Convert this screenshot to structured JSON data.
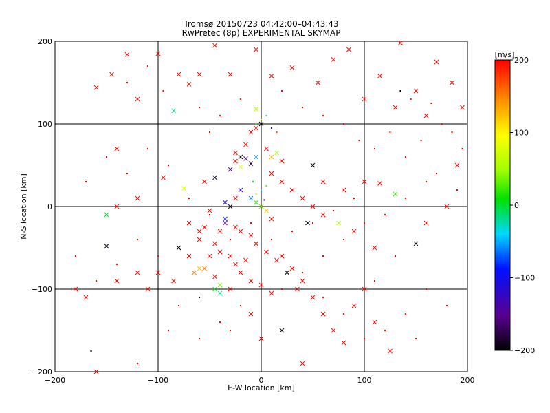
{
  "chart_data": {
    "type": "scatter",
    "title": "Tromsø 20150723 04:42:00–04:43:43",
    "subtitle": "RwPretec (8p) EXPERIMENTAL SKYMAP",
    "xlabel": "E-W location [km]",
    "ylabel": "N-S location [km]",
    "xlim": [
      -200,
      200
    ],
    "ylim": [
      -200,
      200
    ],
    "xticks": [
      "-200",
      "-100",
      "0",
      "100",
      "200"
    ],
    "yticks": [
      "-200",
      "-100",
      "0",
      "100",
      "200"
    ],
    "grid_lines_at": [
      -100,
      0,
      100
    ],
    "colorbar": {
      "label": "[m/s]",
      "min": -200,
      "max": 200,
      "ticks": [
        "200",
        "100",
        "0",
        "-100",
        "-200"
      ],
      "colormap": "rainbow (black-purple-blue-cyan-green-yellow-orange-red)"
    },
    "markers": {
      "cross": "x",
      "dot": "small point"
    },
    "series_note": "Meteor detections; color encodes radial velocity",
    "points": [
      [
        -160,
        144,
        200,
        "x"
      ],
      [
        -130,
        184,
        200,
        "x"
      ],
      [
        -145,
        160,
        200,
        "x"
      ],
      [
        -120,
        130,
        200,
        "x"
      ],
      [
        -100,
        185,
        200,
        "x"
      ],
      [
        -80,
        160,
        200,
        "x"
      ],
      [
        -70,
        148,
        200,
        "x"
      ],
      [
        -60,
        160,
        200,
        "x"
      ],
      [
        -45,
        195,
        200,
        "x"
      ],
      [
        -30,
        160,
        200,
        "x"
      ],
      [
        -5,
        190,
        200,
        "x"
      ],
      [
        10,
        158,
        200,
        "x"
      ],
      [
        30,
        168,
        200,
        "x"
      ],
      [
        55,
        150,
        200,
        "x"
      ],
      [
        70,
        178,
        200,
        "x"
      ],
      [
        85,
        190,
        200,
        "x"
      ],
      [
        100,
        130,
        200,
        "x"
      ],
      [
        115,
        158,
        200,
        "x"
      ],
      [
        135,
        198,
        200,
        "x"
      ],
      [
        150,
        140,
        200,
        "x"
      ],
      [
        170,
        175,
        200,
        "x"
      ],
      [
        195,
        120,
        200,
        "x"
      ],
      [
        185,
        150,
        200,
        "x"
      ],
      [
        160,
        110,
        200,
        "x"
      ],
      [
        130,
        120,
        200,
        "x"
      ],
      [
        -85,
        116,
        -20,
        "x"
      ],
      [
        -5,
        118,
        60,
        "x"
      ],
      [
        -140,
        70,
        200,
        "x"
      ],
      [
        -95,
        35,
        200,
        "x"
      ],
      [
        -75,
        22,
        80,
        "x"
      ],
      [
        -55,
        30,
        200,
        "x"
      ],
      [
        -45,
        35,
        -190,
        "x"
      ],
      [
        -30,
        45,
        -150,
        "x"
      ],
      [
        -25,
        55,
        200,
        "x"
      ],
      [
        -20,
        60,
        -200,
        "x"
      ],
      [
        -15,
        75,
        200,
        "x"
      ],
      [
        -10,
        90,
        200,
        "x"
      ],
      [
        -5,
        95,
        200,
        "x"
      ],
      [
        0,
        100,
        -200,
        "x"
      ],
      [
        5,
        70,
        200,
        "x"
      ],
      [
        10,
        60,
        130,
        "x"
      ],
      [
        15,
        65,
        60,
        "x"
      ],
      [
        20,
        55,
        200,
        "x"
      ],
      [
        -20,
        20,
        -120,
        "x"
      ],
      [
        -10,
        10,
        -60,
        "x"
      ],
      [
        -5,
        5,
        20,
        "x"
      ],
      [
        0,
        0,
        40,
        "x"
      ],
      [
        5,
        -5,
        120,
        "x"
      ],
      [
        10,
        -15,
        200,
        "x"
      ],
      [
        -35,
        -15,
        -100,
        "x"
      ],
      [
        -40,
        -30,
        200,
        "x"
      ],
      [
        -45,
        -45,
        200,
        "x"
      ],
      [
        -50,
        -60,
        200,
        "x"
      ],
      [
        -55,
        -75,
        150,
        "x"
      ],
      [
        -45,
        -85,
        200,
        "x"
      ],
      [
        -40,
        -95,
        40,
        "x"
      ],
      [
        -30,
        -100,
        200,
        "x"
      ],
      [
        -20,
        -80,
        200,
        "x"
      ],
      [
        -25,
        -70,
        200,
        "x"
      ],
      [
        -30,
        -60,
        200,
        "x"
      ],
      [
        -15,
        -65,
        200,
        "x"
      ],
      [
        -10,
        -90,
        200,
        "x"
      ],
      [
        0,
        -95,
        200,
        "x"
      ],
      [
        10,
        -105,
        200,
        "x"
      ],
      [
        20,
        -60,
        200,
        "x"
      ],
      [
        30,
        -75,
        200,
        "x"
      ],
      [
        40,
        -90,
        200,
        "x"
      ],
      [
        50,
        -110,
        200,
        "x"
      ],
      [
        60,
        -130,
        200,
        "x"
      ],
      [
        70,
        -150,
        200,
        "x"
      ],
      [
        80,
        -165,
        200,
        "x"
      ],
      [
        90,
        -120,
        200,
        "x"
      ],
      [
        100,
        -100,
        200,
        "x"
      ],
      [
        110,
        -140,
        200,
        "x"
      ],
      [
        125,
        -175,
        200,
        "x"
      ],
      [
        -150,
        -48,
        -190,
        "x"
      ],
      [
        -80,
        -50,
        -200,
        "x"
      ],
      [
        -85,
        -90,
        200,
        "x"
      ],
      [
        -120,
        -80,
        200,
        "x"
      ],
      [
        -140,
        -90,
        200,
        "x"
      ],
      [
        -170,
        -110,
        200,
        "x"
      ],
      [
        -180,
        -100,
        200,
        "x"
      ],
      [
        -150,
        -10,
        0,
        "x"
      ],
      [
        -140,
        0,
        200,
        "x"
      ],
      [
        -120,
        10,
        200,
        "x"
      ],
      [
        50,
        50,
        -200,
        "x"
      ],
      [
        60,
        30,
        200,
        "x"
      ],
      [
        80,
        20,
        200,
        "x"
      ],
      [
        100,
        30,
        200,
        "x"
      ],
      [
        115,
        28,
        200,
        "x"
      ],
      [
        130,
        15,
        20,
        "x"
      ],
      [
        150,
        -45,
        -200,
        "x"
      ],
      [
        160,
        -20,
        200,
        "x"
      ],
      [
        180,
        0,
        200,
        "x"
      ],
      [
        190,
        50,
        200,
        "x"
      ],
      [
        45,
        -20,
        -200,
        "x"
      ],
      [
        60,
        -10,
        200,
        "x"
      ],
      [
        75,
        -20,
        60,
        "x"
      ],
      [
        90,
        -30,
        200,
        "x"
      ],
      [
        110,
        -50,
        200,
        "x"
      ],
      [
        -45,
        -100,
        0,
        "x"
      ],
      [
        -40,
        -105,
        -20,
        "x"
      ],
      [
        -60,
        -75,
        120,
        "x"
      ],
      [
        -65,
        -80,
        150,
        "x"
      ],
      [
        -35,
        -20,
        -150,
        "x"
      ],
      [
        -25,
        -25,
        200,
        "x"
      ],
      [
        -20,
        -30,
        200,
        "x"
      ],
      [
        -10,
        -35,
        200,
        "x"
      ],
      [
        -5,
        -45,
        200,
        "x"
      ],
      [
        5,
        -55,
        200,
        "x"
      ],
      [
        15,
        -65,
        200,
        "x"
      ],
      [
        25,
        -80,
        -200,
        "x"
      ],
      [
        35,
        -100,
        200,
        "x"
      ],
      [
        -30,
        0,
        -200,
        "x"
      ],
      [
        -35,
        5,
        -120,
        "x"
      ],
      [
        -25,
        10,
        200,
        "x"
      ],
      [
        -50,
        -5,
        200,
        "x"
      ],
      [
        -55,
        -25,
        200,
        "x"
      ],
      [
        -60,
        -40,
        200,
        "x"
      ],
      [
        -40,
        -55,
        200,
        "x"
      ],
      [
        20,
        -150,
        -200,
        "x"
      ],
      [
        -10,
        -130,
        200,
        "x"
      ],
      [
        0,
        -160,
        200,
        "x"
      ],
      [
        40,
        -190,
        200,
        "x"
      ],
      [
        -160,
        -200,
        200,
        "x"
      ],
      [
        -110,
        -100,
        200,
        "x"
      ],
      [
        -100,
        -80,
        200,
        "x"
      ],
      [
        -70,
        -60,
        200,
        "x"
      ],
      [
        -60,
        -30,
        200,
        "x"
      ],
      [
        -70,
        -20,
        200,
        "x"
      ],
      [
        10,
        40,
        200,
        "x"
      ],
      [
        20,
        30,
        200,
        "x"
      ],
      [
        30,
        20,
        200,
        "x"
      ],
      [
        40,
        10,
        200,
        "x"
      ],
      [
        50,
        0,
        200,
        "x"
      ],
      [
        -5,
        60,
        -60,
        "x"
      ],
      [
        -10,
        52,
        -180,
        "x"
      ],
      [
        -15,
        58,
        -150,
        "x"
      ],
      [
        -20,
        48,
        80,
        "x"
      ],
      [
        -25,
        65,
        200,
        "x"
      ],
      [
        -130,
        150,
        200,
        "."
      ],
      [
        -110,
        170,
        200,
        "."
      ],
      [
        -95,
        140,
        200,
        "."
      ],
      [
        -60,
        120,
        200,
        "."
      ],
      [
        -50,
        90,
        200,
        "."
      ],
      [
        -40,
        110,
        200,
        "."
      ],
      [
        -20,
        130,
        200,
        "."
      ],
      [
        20,
        140,
        200,
        "."
      ],
      [
        40,
        120,
        200,
        "."
      ],
      [
        60,
        110,
        200,
        "."
      ],
      [
        80,
        100,
        200,
        "."
      ],
      [
        95,
        80,
        200,
        "."
      ],
      [
        110,
        70,
        200,
        "."
      ],
      [
        125,
        90,
        200,
        "."
      ],
      [
        140,
        60,
        200,
        "."
      ],
      [
        155,
        80,
        200,
        "."
      ],
      [
        170,
        40,
        200,
        "."
      ],
      [
        185,
        90,
        200,
        "."
      ],
      [
        195,
        70,
        200,
        "."
      ],
      [
        160,
        30,
        200,
        "."
      ],
      [
        140,
        10,
        200,
        "."
      ],
      [
        120,
        -10,
        200,
        "."
      ],
      [
        100,
        -20,
        200,
        "."
      ],
      [
        80,
        -40,
        200,
        "."
      ],
      [
        60,
        -60,
        200,
        "."
      ],
      [
        40,
        -80,
        200,
        "."
      ],
      [
        20,
        -100,
        200,
        "."
      ],
      [
        -20,
        -120,
        200,
        "."
      ],
      [
        -40,
        -140,
        200,
        "."
      ],
      [
        -60,
        -160,
        200,
        "."
      ],
      [
        -80,
        -120,
        200,
        "."
      ],
      [
        -100,
        -60,
        200,
        "."
      ],
      [
        -120,
        -40,
        200,
        "."
      ],
      [
        -140,
        -70,
        200,
        "."
      ],
      [
        -160,
        -90,
        200,
        "."
      ],
      [
        -180,
        -60,
        200,
        "."
      ],
      [
        -170,
        30,
        200,
        "."
      ],
      [
        -150,
        60,
        200,
        "."
      ],
      [
        -130,
        40,
        200,
        "."
      ],
      [
        -110,
        70,
        200,
        "."
      ],
      [
        -90,
        50,
        200,
        "."
      ],
      [
        -70,
        10,
        200,
        "."
      ],
      [
        -50,
        -10,
        200,
        "."
      ],
      [
        -30,
        -40,
        200,
        "."
      ],
      [
        -10,
        -20,
        200,
        "."
      ],
      [
        10,
        -40,
        200,
        "."
      ],
      [
        30,
        -30,
        200,
        "."
      ],
      [
        50,
        -20,
        200,
        "."
      ],
      [
        70,
        -5,
        200,
        "."
      ],
      [
        90,
        10,
        200,
        "."
      ],
      [
        0,
        105,
        80,
        "."
      ],
      [
        5,
        110,
        -20,
        "."
      ],
      [
        -5,
        100,
        40,
        "."
      ],
      [
        10,
        95,
        -120,
        "."
      ],
      [
        15,
        90,
        180,
        "."
      ],
      [
        0,
        20,
        -40,
        "."
      ],
      [
        5,
        25,
        30,
        "."
      ],
      [
        -5,
        15,
        60,
        "."
      ],
      [
        3,
        8,
        -100,
        "."
      ],
      [
        -8,
        30,
        0,
        "."
      ],
      [
        60,
        -110,
        200,
        "."
      ],
      [
        80,
        -130,
        200,
        "."
      ],
      [
        100,
        -160,
        200,
        "."
      ],
      [
        120,
        -150,
        200,
        "."
      ],
      [
        140,
        -130,
        200,
        "."
      ],
      [
        160,
        -100,
        200,
        "."
      ],
      [
        180,
        -120,
        200,
        "."
      ],
      [
        130,
        -60,
        200,
        "."
      ],
      [
        110,
        -90,
        200,
        "."
      ],
      [
        150,
        -160,
        200,
        "."
      ],
      [
        -165,
        -175,
        -200,
        "."
      ],
      [
        -120,
        -190,
        200,
        "."
      ],
      [
        -90,
        -150,
        200,
        "."
      ],
      [
        -60,
        -110,
        -200,
        "."
      ],
      [
        -30,
        -150,
        200,
        "."
      ],
      [
        135,
        140,
        -200,
        "."
      ],
      [
        145,
        130,
        200,
        "."
      ],
      [
        175,
        100,
        200,
        "."
      ],
      [
        165,
        125,
        200,
        "."
      ],
      [
        190,
        20,
        200,
        "."
      ]
    ]
  }
}
